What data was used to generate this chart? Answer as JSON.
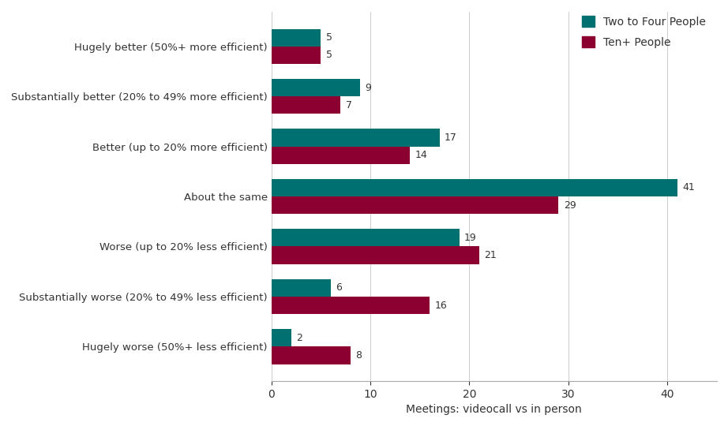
{
  "categories": [
    "Hugely better (50%+ more efficient)",
    "Substantially better (20% to 49% more efficient)",
    "Better (up to 20% more efficient)",
    "About the same",
    "Worse (up to 20% less efficient)",
    "Substantially worse (20% to 49% less efficient)",
    "Hugely worse (50%+ less efficient)"
  ],
  "two_to_four": [
    5,
    9,
    17,
    41,
    19,
    6,
    2
  ],
  "ten_plus": [
    5,
    7,
    14,
    29,
    21,
    16,
    8
  ],
  "color_two_to_four": "#007070",
  "color_ten_plus": "#8B0030",
  "xlabel": "Meetings: videocall vs in person",
  "legend_labels": [
    "Two to Four People",
    "Ten+ People"
  ],
  "xlim": [
    0,
    45
  ],
  "bar_height": 0.35,
  "background_color": "#ffffff",
  "label_fontsize": 9.5,
  "tick_fontsize": 10,
  "xlabel_fontsize": 10,
  "legend_fontsize": 10,
  "value_fontsize": 9
}
